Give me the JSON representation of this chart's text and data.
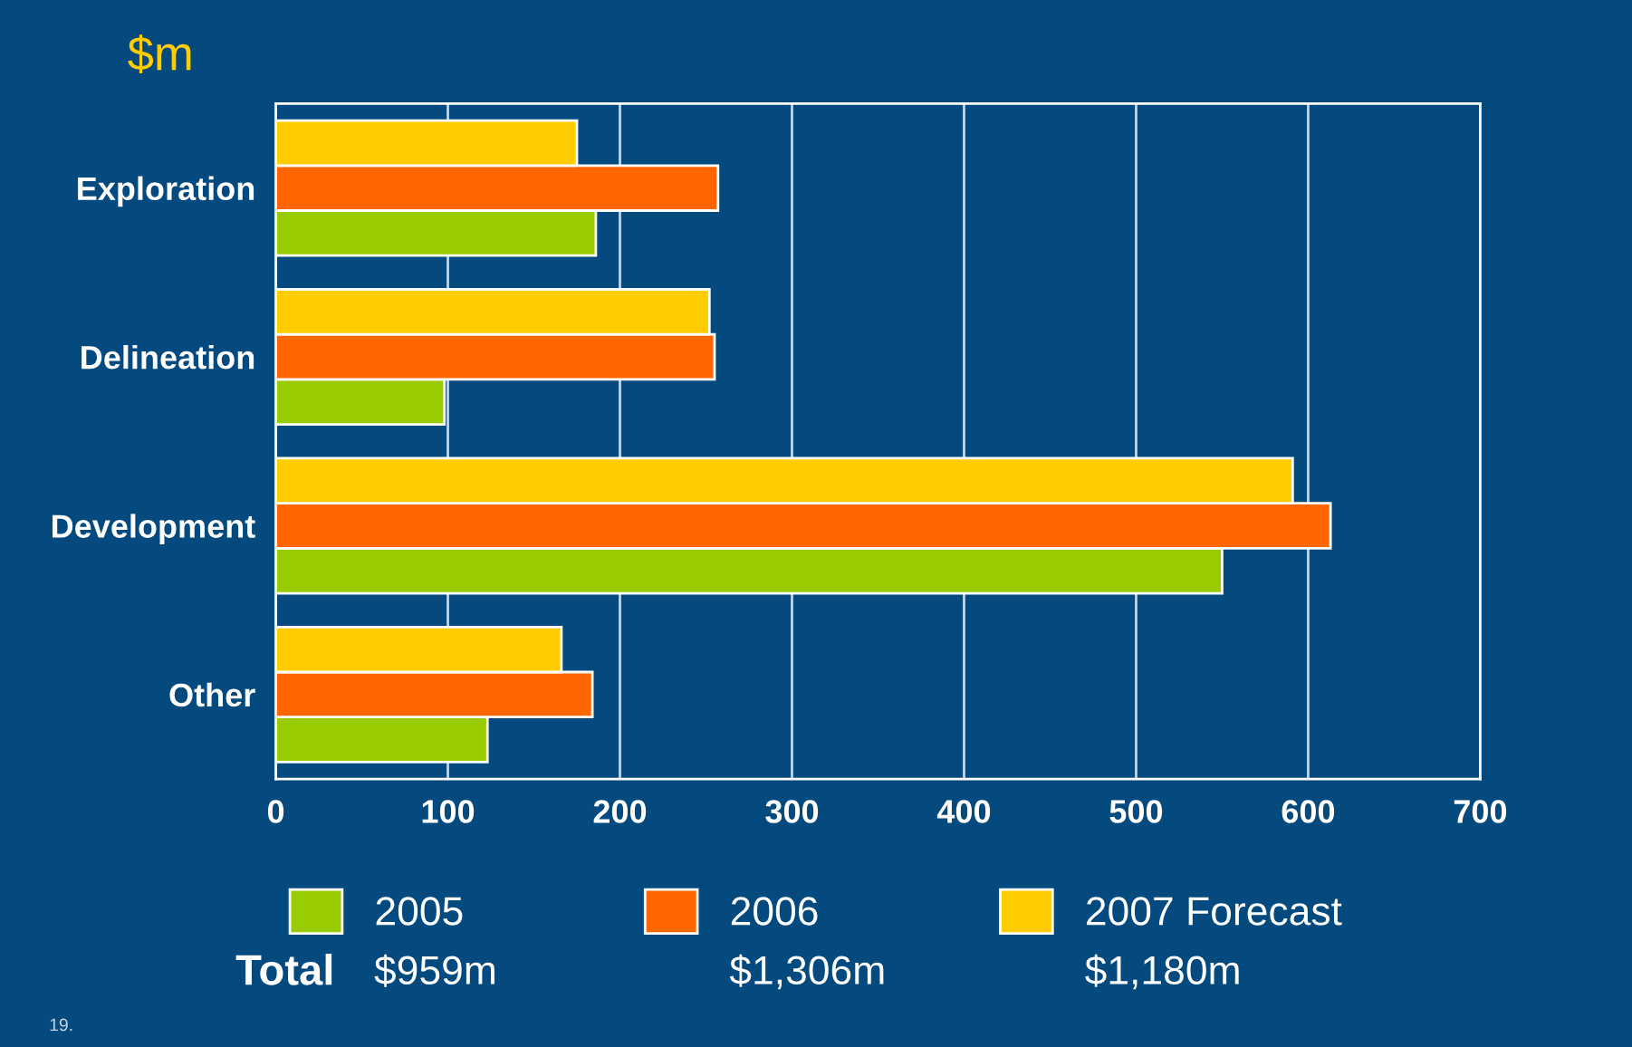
{
  "chart_data": {
    "type": "bar",
    "orientation": "horizontal",
    "title": "$m",
    "categories": [
      "Exploration",
      "Delineation",
      "Development",
      "Other"
    ],
    "series": [
      {
        "name": "2005",
        "color": "#99cc00",
        "values": [
          186,
          98,
          550,
          123
        ]
      },
      {
        "name": "2006",
        "color": "#ff6600",
        "values": [
          257,
          255,
          613,
          184
        ]
      },
      {
        "name": "2007 Forecast",
        "color": "#ffcc00",
        "values": [
          175,
          252,
          591,
          166
        ]
      }
    ],
    "xlim": [
      0,
      700
    ],
    "xticks": [
      0,
      100,
      200,
      300,
      400,
      500,
      600,
      700
    ],
    "grid": "x",
    "legend": "bottom",
    "annotations": [
      "Total",
      "$959m",
      "$1,306m",
      "$1,180m",
      "19."
    ]
  }
}
